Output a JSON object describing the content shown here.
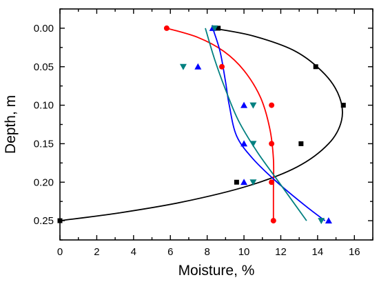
{
  "chart_data": {
    "type": "scatter",
    "title": "",
    "xlabel": "Moisture, %",
    "ylabel": "Depth, m",
    "xlim": [
      0,
      17
    ],
    "ylim": [
      0.275,
      -0.025
    ],
    "y_axis_inverted": true,
    "x_major_ticks": [
      0,
      2,
      4,
      6,
      8,
      10,
      12,
      14,
      16
    ],
    "x_tick_labels": [
      "0",
      "2",
      "4",
      "6",
      "8",
      "10",
      "12",
      "14",
      "16"
    ],
    "x_minor_step": 1,
    "y_major_ticks": [
      0.0,
      0.05,
      0.1,
      0.15,
      0.2,
      0.25
    ],
    "y_tick_labels": [
      "0.00",
      "0.05",
      "0.10",
      "0.15",
      "0.20",
      "0.25"
    ],
    "y_minor_step": 0.025,
    "grid": false,
    "legend": "none",
    "series": [
      {
        "marker": "square",
        "color": "#000000",
        "points": [
          [
            8.6,
            0.0
          ],
          [
            13.9,
            0.05
          ],
          [
            15.4,
            0.1
          ],
          [
            13.1,
            0.15
          ],
          [
            9.6,
            0.2
          ],
          [
            0.0,
            0.25
          ]
        ],
        "fit": [
          [
            8.3,
            0.0
          ],
          [
            10.5,
            0.01
          ],
          [
            12.8,
            0.03
          ],
          [
            14.4,
            0.06
          ],
          [
            15.2,
            0.09
          ],
          [
            15.3,
            0.12
          ],
          [
            14.6,
            0.15
          ],
          [
            12.9,
            0.18
          ],
          [
            10.2,
            0.205
          ],
          [
            6.6,
            0.226
          ],
          [
            3.2,
            0.24
          ],
          [
            0.0,
            0.25
          ]
        ]
      },
      {
        "marker": "circle",
        "color": "#ff0000",
        "points": [
          [
            5.8,
            0.0
          ],
          [
            8.8,
            0.05
          ],
          [
            11.5,
            0.1
          ],
          [
            11.5,
            0.15
          ],
          [
            11.5,
            0.2
          ],
          [
            11.6,
            0.25
          ]
        ],
        "fit": [
          [
            5.8,
            0.0
          ],
          [
            7.5,
            0.012
          ],
          [
            8.9,
            0.03
          ],
          [
            10.0,
            0.055
          ],
          [
            10.9,
            0.09
          ],
          [
            11.4,
            0.13
          ],
          [
            11.6,
            0.17
          ],
          [
            11.6,
            0.21
          ],
          [
            11.6,
            0.25
          ]
        ]
      },
      {
        "marker": "triangle-up",
        "color": "#0000ff",
        "points": [
          [
            8.3,
            0.0
          ],
          [
            7.5,
            0.05
          ],
          [
            10.0,
            0.1
          ],
          [
            10.0,
            0.15
          ],
          [
            10.0,
            0.2
          ],
          [
            14.6,
            0.25
          ]
        ],
        "fit": [
          [
            8.3,
            0.0
          ],
          [
            8.7,
            0.03
          ],
          [
            9.0,
            0.07
          ],
          [
            9.2,
            0.1
          ],
          [
            9.6,
            0.14
          ],
          [
            10.5,
            0.17
          ],
          [
            11.8,
            0.2
          ],
          [
            13.3,
            0.23
          ],
          [
            14.4,
            0.25
          ]
        ]
      },
      {
        "marker": "triangle-down",
        "color": "#008080",
        "points": [
          [
            8.4,
            0.0
          ],
          [
            6.7,
            0.05
          ],
          [
            10.5,
            0.1
          ],
          [
            10.5,
            0.15
          ],
          [
            10.5,
            0.2
          ],
          [
            14.2,
            0.25
          ]
        ],
        "fit": [
          [
            7.9,
            0.0
          ],
          [
            8.4,
            0.04
          ],
          [
            9.0,
            0.08
          ],
          [
            9.7,
            0.12
          ],
          [
            10.7,
            0.16
          ],
          [
            11.9,
            0.2
          ],
          [
            13.4,
            0.25
          ]
        ]
      }
    ]
  }
}
